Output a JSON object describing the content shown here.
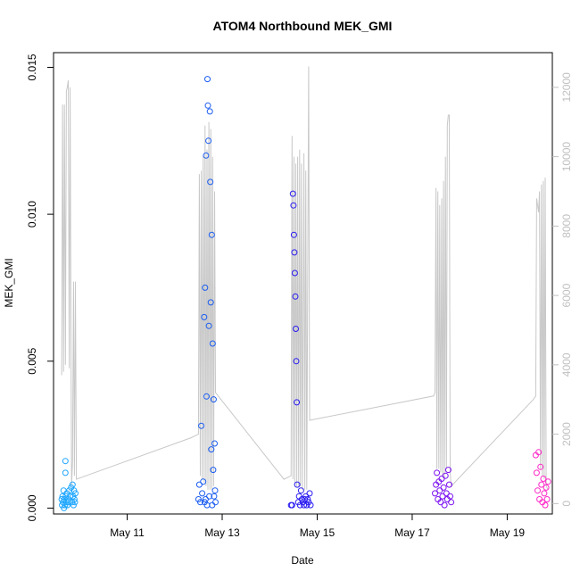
{
  "chart_data": {
    "type": "scatter",
    "title": "ATOM4 Northbound MEK_GMI",
    "xlabel": "Date",
    "ylabel": "MEK_GMI",
    "x_ticks": [
      "May 11",
      "May 13",
      "May 15",
      "May 17",
      "May 19"
    ],
    "x_range_days": [
      9.45,
      19.95
    ],
    "y_ticks": [
      "0.000",
      "0.005",
      "0.010",
      "0.015"
    ],
    "ylim": [
      -0.0002,
      0.0155
    ],
    "y2_ticks": [
      "0",
      "2000",
      "4000",
      "6000",
      "8000",
      "10000",
      "12000"
    ],
    "y2lim": [
      -300,
      13000
    ],
    "grid": false,
    "point_marker": "open-circle",
    "line_color": "#c8c8c8",
    "flights": [
      {
        "color": "#1ea6ff",
        "points": [
          [
            9.62,
            0.0003
          ],
          [
            9.63,
            0.0001
          ],
          [
            9.64,
            0.0004
          ],
          [
            9.65,
            0.0002
          ],
          [
            9.66,
            0.0006
          ],
          [
            9.67,
            0.0
          ],
          [
            9.68,
            0.0003
          ],
          [
            9.69,
            0.0001
          ],
          [
            9.7,
            0.0016
          ],
          [
            9.7,
            0.0012
          ],
          [
            9.71,
            0.0004
          ],
          [
            9.72,
            0.0002
          ],
          [
            9.73,
            0.0005
          ],
          [
            9.74,
            0.0001
          ],
          [
            9.75,
            0.0003
          ],
          [
            9.76,
            0.0002
          ],
          [
            9.78,
            0.0006
          ],
          [
            9.8,
            0.0004
          ],
          [
            9.82,
            0.0007
          ],
          [
            9.84,
            0.0002
          ],
          [
            9.85,
            0.0008
          ],
          [
            9.86,
            0.0004
          ],
          [
            9.87,
            0.0001
          ],
          [
            9.88,
            0.0006
          ],
          [
            9.89,
            0.0003
          ],
          [
            9.9,
            0.0002
          ],
          [
            9.91,
            0.0005
          ]
        ],
        "altitude": [
          [
            9.62,
            3700
          ],
          [
            9.64,
            11500
          ],
          [
            9.66,
            3800
          ],
          [
            9.68,
            11500
          ],
          [
            9.7,
            4000
          ],
          [
            9.72,
            11900
          ],
          [
            9.74,
            12000
          ],
          [
            9.76,
            12200
          ],
          [
            9.78,
            3900
          ],
          [
            9.8,
            12000
          ],
          [
            9.82,
            3700
          ],
          [
            9.83,
            500
          ],
          [
            9.85,
            1200
          ],
          [
            9.87,
            6400
          ],
          [
            9.89,
            800
          ],
          [
            9.91,
            6400
          ],
          [
            9.93,
            700
          ]
        ]
      },
      {
        "color": "#1a5cf0",
        "points": [
          [
            12.5,
            0.0003
          ],
          [
            12.52,
            0.0008
          ],
          [
            12.54,
            0.0002
          ],
          [
            12.56,
            0.0028
          ],
          [
            12.58,
            0.0005
          ],
          [
            12.6,
            0.0009
          ],
          [
            12.62,
            0.0065
          ],
          [
            12.63,
            0.0002
          ],
          [
            12.64,
            0.0075
          ],
          [
            12.65,
            0.0003
          ],
          [
            12.66,
            0.012
          ],
          [
            12.67,
            0.0038
          ],
          [
            12.68,
            0.0001
          ],
          [
            12.69,
            0.0146
          ],
          [
            12.7,
            0.0137
          ],
          [
            12.71,
            0.0125
          ],
          [
            12.72,
            0.0062
          ],
          [
            12.73,
            0.0004
          ],
          [
            12.74,
            0.0135
          ],
          [
            12.75,
            0.0111
          ],
          [
            12.76,
            0.007
          ],
          [
            12.77,
            0.002
          ],
          [
            12.78,
            0.0093
          ],
          [
            12.79,
            0.0001
          ],
          [
            12.8,
            0.0056
          ],
          [
            12.81,
            0.0013
          ],
          [
            12.82,
            0.0037
          ],
          [
            12.83,
            0.0004
          ],
          [
            12.84,
            0.0022
          ],
          [
            12.85,
            0.0006
          ],
          [
            12.86,
            0.0002
          ]
        ],
        "altitude": [
          [
            12.35,
            1900
          ],
          [
            12.5,
            2000
          ],
          [
            12.52,
            9500
          ],
          [
            12.54,
            800
          ],
          [
            12.56,
            9600
          ],
          [
            12.58,
            700
          ],
          [
            12.6,
            10000
          ],
          [
            12.62,
            600
          ],
          [
            12.64,
            10900
          ],
          [
            12.66,
            500
          ],
          [
            12.68,
            10200
          ],
          [
            12.7,
            400
          ],
          [
            12.72,
            11000
          ],
          [
            12.74,
            400
          ],
          [
            12.76,
            10800
          ],
          [
            12.78,
            400
          ],
          [
            12.8,
            10000
          ],
          [
            12.82,
            500
          ],
          [
            12.84,
            9000
          ],
          [
            12.86,
            3200
          ]
        ]
      },
      {
        "color": "#2a1cf0",
        "points": [
          [
            14.45,
            0.0001
          ],
          [
            14.47,
            0.0001
          ],
          [
            14.49,
            0.0107
          ],
          [
            14.5,
            0.0103
          ],
          [
            14.51,
            0.0093
          ],
          [
            14.52,
            0.0087
          ],
          [
            14.53,
            0.008
          ],
          [
            14.54,
            0.0072
          ],
          [
            14.55,
            0.0061
          ],
          [
            14.56,
            0.005
          ],
          [
            14.57,
            0.0036
          ],
          [
            14.58,
            0.0008
          ],
          [
            14.6,
            0.0002
          ],
          [
            14.62,
            0.0004
          ],
          [
            14.64,
            0.0001
          ],
          [
            14.66,
            0.0006
          ],
          [
            14.68,
            0.0003
          ],
          [
            14.7,
            0.0002
          ],
          [
            14.72,
            0.0001
          ],
          [
            14.74,
            0.0003
          ],
          [
            14.76,
            0.0004
          ],
          [
            14.78,
            0.0001
          ],
          [
            14.8,
            0.0003
          ],
          [
            14.82,
            0.0002
          ],
          [
            14.84,
            0.0005
          ],
          [
            14.86,
            0.0001
          ]
        ],
        "altitude": [
          [
            14.3,
            700
          ],
          [
            14.45,
            800
          ],
          [
            14.47,
            10600
          ],
          [
            14.49,
            700
          ],
          [
            14.51,
            10000
          ],
          [
            14.53,
            600
          ],
          [
            14.55,
            9800
          ],
          [
            14.57,
            500
          ],
          [
            14.59,
            10000
          ],
          [
            14.61,
            500
          ],
          [
            14.63,
            10200
          ],
          [
            14.65,
            500
          ],
          [
            14.67,
            9800
          ],
          [
            14.69,
            400
          ],
          [
            14.72,
            10100
          ],
          [
            14.74,
            400
          ],
          [
            14.76,
            9600
          ],
          [
            14.78,
            400
          ],
          [
            14.82,
            12600
          ],
          [
            14.84,
            2400
          ]
        ]
      },
      {
        "color": "#7a10f0",
        "points": [
          [
            17.48,
            0.0005
          ],
          [
            17.5,
            0.0008
          ],
          [
            17.52,
            0.0012
          ],
          [
            17.54,
            0.0003
          ],
          [
            17.56,
            0.0009
          ],
          [
            17.58,
            0.0006
          ],
          [
            17.6,
            0.0002
          ],
          [
            17.62,
            0.001
          ],
          [
            17.64,
            0.0004
          ],
          [
            17.66,
            0.0007
          ],
          [
            17.68,
            0.0001
          ],
          [
            17.7,
            0.0011
          ],
          [
            17.72,
            0.0005
          ],
          [
            17.74,
            0.0003
          ],
          [
            17.76,
            0.0013
          ],
          [
            17.78,
            0.0008
          ],
          [
            17.8,
            0.0004
          ],
          [
            17.82,
            0.0002
          ]
        ],
        "altitude": [
          [
            17.45,
            3100
          ],
          [
            17.48,
            3200
          ],
          [
            17.5,
            9100
          ],
          [
            17.52,
            1000
          ],
          [
            17.54,
            9000
          ],
          [
            17.56,
            1000
          ],
          [
            17.58,
            8600
          ],
          [
            17.6,
            900
          ],
          [
            17.62,
            8800
          ],
          [
            17.64,
            800
          ],
          [
            17.66,
            9300
          ],
          [
            17.68,
            700
          ],
          [
            17.7,
            10000
          ],
          [
            17.72,
            1000
          ],
          [
            17.74,
            10900
          ],
          [
            17.76,
            11200
          ],
          [
            17.78,
            11200
          ],
          [
            17.8,
            900
          ],
          [
            17.82,
            500
          ]
        ]
      },
      {
        "color": "#ff28c8",
        "points": [
          [
            19.6,
            0.0018
          ],
          [
            19.62,
            0.0012
          ],
          [
            19.64,
            0.0006
          ],
          [
            19.66,
            0.0019
          ],
          [
            19.68,
            0.0003
          ],
          [
            19.7,
            0.0014
          ],
          [
            19.72,
            0.0008
          ],
          [
            19.74,
            0.0002
          ],
          [
            19.76,
            0.001
          ],
          [
            19.78,
            0.0005
          ],
          [
            19.8,
            0.0001
          ],
          [
            19.82,
            0.0007
          ],
          [
            19.84,
            0.0003
          ],
          [
            19.86,
            0.0009
          ]
        ],
        "altitude": [
          [
            19.55,
            3000
          ],
          [
            19.6,
            3100
          ],
          [
            19.62,
            8800
          ],
          [
            19.64,
            8600
          ],
          [
            19.66,
            8400
          ],
          [
            19.68,
            9000
          ],
          [
            19.7,
            1000
          ],
          [
            19.72,
            9200
          ],
          [
            19.74,
            800
          ],
          [
            19.76,
            9300
          ],
          [
            19.78,
            700
          ],
          [
            19.8,
            9400
          ],
          [
            19.82,
            500
          ],
          [
            19.86,
            400
          ]
        ]
      }
    ]
  }
}
